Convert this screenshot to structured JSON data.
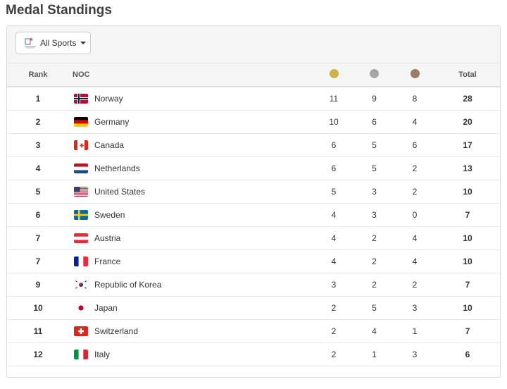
{
  "page": {
    "title": "Medal Standings"
  },
  "toolbar": {
    "sports_label": "All Sports",
    "emblem_icon": "olympic-emblem-icon"
  },
  "table": {
    "headers": {
      "rank": "Rank",
      "noc": "NOC",
      "total": "Total"
    },
    "medal_colors": {
      "gold": "#cfb24e",
      "silver": "#a6a6a6",
      "bronze": "#9c7a64"
    },
    "rows": [
      {
        "rank": "1",
        "country": "Norway",
        "flag": "norway-flag-icon",
        "gold": "11",
        "silver": "9",
        "bronze": "8",
        "total": "28"
      },
      {
        "rank": "2",
        "country": "Germany",
        "flag": "germany-flag-icon",
        "gold": "10",
        "silver": "6",
        "bronze": "4",
        "total": "20"
      },
      {
        "rank": "3",
        "country": "Canada",
        "flag": "canada-flag-icon",
        "gold": "6",
        "silver": "5",
        "bronze": "6",
        "total": "17"
      },
      {
        "rank": "4",
        "country": "Netherlands",
        "flag": "netherlands-flag-icon",
        "gold": "6",
        "silver": "5",
        "bronze": "2",
        "total": "13"
      },
      {
        "rank": "5",
        "country": "United States",
        "flag": "united-states-flag-icon",
        "gold": "5",
        "silver": "3",
        "bronze": "2",
        "total": "10"
      },
      {
        "rank": "6",
        "country": "Sweden",
        "flag": "sweden-flag-icon",
        "gold": "4",
        "silver": "3",
        "bronze": "0",
        "total": "7"
      },
      {
        "rank": "7",
        "country": "Austria",
        "flag": "austria-flag-icon",
        "gold": "4",
        "silver": "2",
        "bronze": "4",
        "total": "10"
      },
      {
        "rank": "7",
        "country": "France",
        "flag": "france-flag-icon",
        "gold": "4",
        "silver": "2",
        "bronze": "4",
        "total": "10"
      },
      {
        "rank": "9",
        "country": "Republic of Korea",
        "flag": "korea-flag-icon",
        "gold": "3",
        "silver": "2",
        "bronze": "2",
        "total": "7"
      },
      {
        "rank": "10",
        "country": "Japan",
        "flag": "japan-flag-icon",
        "gold": "2",
        "silver": "5",
        "bronze": "3",
        "total": "10"
      },
      {
        "rank": "11",
        "country": "Switzerland",
        "flag": "switzerland-flag-icon",
        "gold": "2",
        "silver": "4",
        "bronze": "1",
        "total": "7"
      },
      {
        "rank": "12",
        "country": "Italy",
        "flag": "italy-flag-icon",
        "gold": "2",
        "silver": "1",
        "bronze": "3",
        "total": "6"
      },
      {
        "rank": "",
        "country": "",
        "flag": "",
        "gold": "",
        "silver": "",
        "bronze": "",
        "total": ""
      }
    ]
  }
}
